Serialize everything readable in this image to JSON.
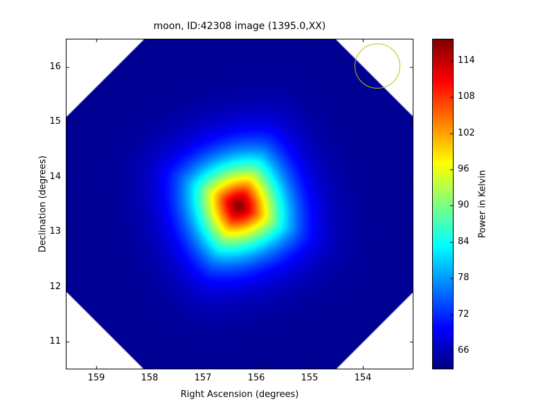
{
  "chart_data": {
    "type": "heatmap",
    "title": "moon, ID:42308 image (1395.0,XX)",
    "xlabel": "Right Ascension (degrees)",
    "ylabel": "Declination (degrees)",
    "x_ticks": [
      "159",
      "158",
      "157",
      "156",
      "155",
      "154"
    ],
    "y_ticks": [
      "16",
      "15",
      "14",
      "13",
      "12",
      "11"
    ],
    "x_range": [
      159.558,
      153.064
    ],
    "y_range": [
      16.504,
      10.509
    ],
    "x_axis_reversed": true,
    "colormap": "jet",
    "value_label": "Power in Kelvin",
    "value_range": [
      63,
      117.5
    ],
    "colorbar_ticks": [
      "114",
      "108",
      "102",
      "96",
      "90",
      "84",
      "78",
      "72",
      "66"
    ],
    "background_value": 64,
    "blob": {
      "ra": 156.33,
      "dec": 13.48,
      "peak_value": 117,
      "scale_deg": 0.88,
      "shape_exponent": 1.5,
      "rotation_deg": 25
    },
    "mask": "octagonal field of view, clipped corners shown white",
    "annotation_circle": {
      "ra": 153.73,
      "dec": 16.02,
      "radius_deg": 0.42,
      "color": "#bfbf00"
    }
  }
}
